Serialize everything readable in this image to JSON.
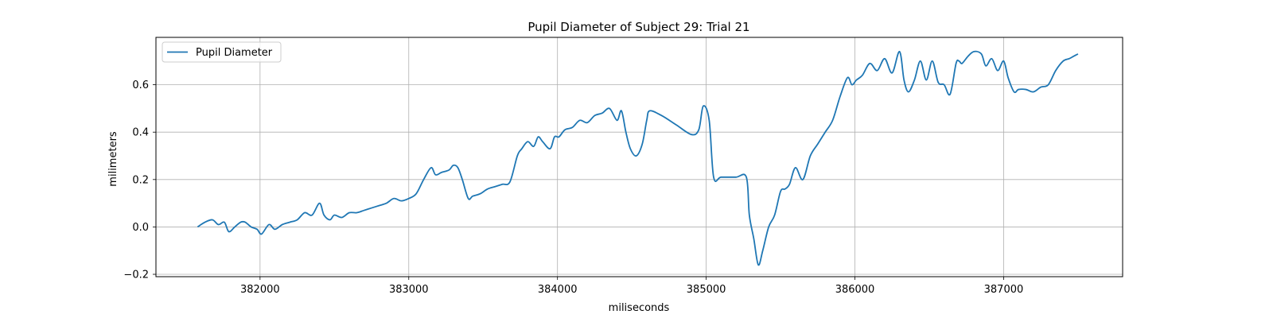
{
  "chart_data": {
    "type": "line",
    "title": "Pupil Diameter of Subject 29: Trial 21",
    "xlabel": "miliseconds",
    "ylabel": "milimeters",
    "xlim": [
      381300,
      387800
    ],
    "ylim": [
      -0.21,
      0.8
    ],
    "xticks": [
      382000,
      383000,
      384000,
      385000,
      386000,
      387000
    ],
    "xtick_labels": [
      "382000",
      "383000",
      "384000",
      "385000",
      "386000",
      "387000"
    ],
    "yticks": [
      -0.2,
      0.0,
      0.2,
      0.4,
      0.6
    ],
    "ytick_labels": [
      "−0.2",
      "0.0",
      "0.2",
      "0.4",
      "0.6"
    ],
    "grid": true,
    "legend_position": "top-left",
    "series": [
      {
        "name": "Pupil Diameter",
        "color": "#1f77b4",
        "x": [
          381580,
          381630,
          381680,
          381720,
          381760,
          381790,
          381830,
          381870,
          381900,
          381940,
          381980,
          382010,
          382060,
          382100,
          382150,
          382200,
          382250,
          382300,
          382350,
          382400,
          382430,
          382470,
          382500,
          382550,
          382600,
          382650,
          382700,
          382750,
          382800,
          382850,
          382900,
          382950,
          383000,
          383050,
          383100,
          383150,
          383180,
          383220,
          383270,
          383300,
          383330,
          383360,
          383400,
          383430,
          383480,
          383530,
          383580,
          383630,
          383680,
          383730,
          383760,
          383800,
          383840,
          383870,
          383900,
          383950,
          383980,
          384010,
          384050,
          384100,
          384150,
          384200,
          384250,
          384300,
          384350,
          384400,
          384430,
          384460,
          384490,
          384530,
          384570,
          384600,
          384620,
          384700,
          384800,
          384900,
          384950,
          384980,
          385020,
          385050,
          385100,
          385200,
          385270,
          385290,
          385320,
          385350,
          385380,
          385420,
          385460,
          385500,
          385530,
          385560,
          385600,
          385650,
          385700,
          385750,
          385800,
          385850,
          385900,
          385950,
          385980,
          386010,
          386050,
          386100,
          386150,
          386200,
          386250,
          386300,
          386330,
          386360,
          386400,
          386440,
          386480,
          386520,
          386560,
          386600,
          386640,
          386680,
          386700,
          386720,
          386760,
          386800,
          386850,
          386880,
          386920,
          386960,
          387000,
          387030,
          387070,
          387100,
          387150,
          387200,
          387250,
          387300,
          387350,
          387400,
          387440,
          387470,
          387500
        ],
        "y": [
          0.0,
          0.02,
          0.03,
          0.01,
          0.02,
          -0.02,
          0.0,
          0.02,
          0.02,
          0.0,
          -0.01,
          -0.03,
          0.01,
          -0.01,
          0.01,
          0.02,
          0.03,
          0.06,
          0.05,
          0.1,
          0.05,
          0.03,
          0.05,
          0.04,
          0.06,
          0.06,
          0.07,
          0.08,
          0.09,
          0.1,
          0.12,
          0.11,
          0.12,
          0.14,
          0.2,
          0.25,
          0.22,
          0.23,
          0.24,
          0.26,
          0.25,
          0.2,
          0.12,
          0.13,
          0.14,
          0.16,
          0.17,
          0.18,
          0.19,
          0.3,
          0.33,
          0.36,
          0.34,
          0.38,
          0.36,
          0.33,
          0.38,
          0.38,
          0.41,
          0.42,
          0.45,
          0.44,
          0.47,
          0.48,
          0.5,
          0.45,
          0.49,
          0.4,
          0.33,
          0.3,
          0.35,
          0.45,
          0.49,
          0.47,
          0.43,
          0.39,
          0.41,
          0.51,
          0.45,
          0.21,
          0.21,
          0.21,
          0.21,
          0.05,
          -0.05,
          -0.16,
          -0.1,
          0.0,
          0.05,
          0.15,
          0.16,
          0.18,
          0.25,
          0.2,
          0.3,
          0.35,
          0.4,
          0.45,
          0.55,
          0.63,
          0.6,
          0.62,
          0.64,
          0.69,
          0.66,
          0.71,
          0.65,
          0.74,
          0.62,
          0.57,
          0.62,
          0.7,
          0.62,
          0.7,
          0.61,
          0.6,
          0.56,
          0.69,
          0.7,
          0.69,
          0.72,
          0.74,
          0.73,
          0.68,
          0.71,
          0.66,
          0.7,
          0.63,
          0.57,
          0.58,
          0.58,
          0.57,
          0.59,
          0.6,
          0.66,
          0.7,
          0.71,
          0.72,
          0.73
        ]
      }
    ]
  }
}
